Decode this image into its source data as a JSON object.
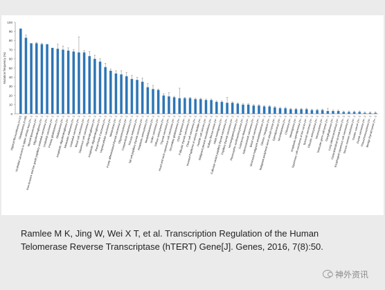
{
  "chart_data": {
    "type": "bar",
    "ylabel": "Mutation frequency (%)",
    "ylim": [
      0,
      100
    ],
    "yticks": [
      0,
      10,
      20,
      30,
      40,
      50,
      60,
      70,
      80,
      90,
      100
    ],
    "grid": false,
    "bar_color": "#2e75b6",
    "categories": [
      "Atypical fibroxanthoma (n=27)",
      "Glioblastoma (n=80)",
      "Urothelial carcinoma in upper urinary tract (n=...)",
      "Myxoid liposarcoma (n=...)",
      "Oligodendroglioma (n=...)",
      "Non-invasive and low grade papillary urothelial carcinoma (n=...)",
      "Urothelial carcinoma (n=...)",
      "Primary glioblastoma (n=...)",
      "Glioblastoma (n=...)",
      "Anaplastic oligodendroglioma (n=...)",
      "Metastatic melanoma (n=...)",
      "Urothelial carcinoma (n=...)",
      "Basal cell carcinoma (n=...)",
      "Squamous cell carcinoma (n=...)",
      "Oligodendrogliomas (n=...)",
      "Anaplastic oligodendroglioma (n=...)",
      "Renal Pelvic Carcinoma (n=...)",
      "Hepatocellular carcinoma (n=...)",
      "Melanomas (n=...)",
      "Poorly differentiated thyroid carcinoma (n=...)",
      "Oligoastrocytoma (n=...)",
      "Conjunctival melanoma (n=...)",
      "Primary melanoma (n=...)",
      "Tall cell papillary thyroid carcinoma (n=...)",
      "Anaplastic astrocytoma (n=...)",
      "Medulloblastoma (n=...)",
      "Under carcinoma (n=...)",
      "Diffuse astrocytoma (n=...)",
      "Thyroid carcinoma (n=...)",
      "Head and neck squamous cell carcinoma (n=...)",
      "Secondary glioblastoma (n=...)",
      "CNS lymphoma (n=...)",
      "Follicular thyroid carcinoma (n=...)",
      "Clear cell carcinoma (n=...)",
      "Inverted Papilloma of urinary bladder (n=...)",
      "Hurthle cell cancers (n=...)",
      "Malignant pleural mesothelioma (n=...)",
      "Solitary fibrous tumor (n=...)",
      "Adult meningioma (n=...)",
      "Follicular variant papillary thyroid carcinoma (n=...)",
      "Papillary thyroid carcinoma (n=...)",
      "Hemangiopericytoma (n=...)",
      "Pleomorphic xanthoastrocytoma (n=...)",
      "Cutaneous Melanoma (n=...)",
      "Adenocarcinoid carcinoma (n=...)",
      "Basal cell carcinoma (n=...)",
      "Sinonasal malignant ameloblastomas (n=...)",
      "Glioma / Neoplasm (n=...)",
      "Malignant peripheral nerve sheath tumor (n=...)",
      "Ependymomas (n=...)",
      "Neuroblastoma (n=...)",
      "Chloroma (n=...)",
      "Meningioma (n=...)",
      "Anaplastic ependymoma (n=...)",
      "Squamous cell carcinoma of the cervix (n=...)",
      "Synovial sarcomas (n=...)",
      "Pilocytic astrocytoma (n=...)",
      "Neurocytoma (n=...)",
      "Testicular germ cell tumor (n=...)",
      "Gangliogliomas (n=...)",
      "Lung adenocarcinomas (n=...)",
      "Gastrointestinal stromal tumors (n=...)",
      "Esophageal squamous cell carcinoma (n=...)",
      "Serous ovarian carcinoma (n=...)",
      "Gastric cancer (n=...)",
      "Ductal carcinoma (n=...)",
      "Pheochromocytoma (n=...)",
      "Benign thyroid tumor (n=...)"
    ],
    "values": [
      93,
      83,
      77,
      77,
      76,
      76,
      72,
      71,
      70,
      69,
      68,
      67,
      67,
      63,
      60,
      57,
      51,
      47,
      44,
      43,
      41,
      38,
      37,
      35,
      29,
      27,
      26,
      20,
      19,
      18,
      17,
      17,
      17,
      16,
      16,
      15,
      15,
      13,
      13,
      12,
      12,
      11,
      10,
      10,
      9,
      9,
      8,
      8,
      7,
      6,
      6,
      5,
      5,
      5,
      5,
      4,
      4,
      4,
      3,
      3,
      3,
      2,
      2,
      2,
      2,
      1,
      1,
      1
    ],
    "errors": [
      0,
      3,
      0,
      1,
      1,
      0,
      0,
      5,
      4,
      3,
      2,
      17,
      2,
      5,
      4,
      3,
      4,
      2,
      3,
      4,
      4,
      4,
      3,
      4,
      4,
      4,
      1,
      2,
      4,
      1,
      11,
      1,
      1,
      1,
      1,
      1,
      1,
      1,
      1,
      6,
      1,
      1,
      1,
      1,
      1,
      1,
      1,
      1,
      1,
      1,
      1,
      1,
      1,
      1,
      1,
      1,
      1,
      1,
      3,
      1,
      1,
      1,
      1,
      1,
      1,
      1,
      1,
      1
    ]
  },
  "citation": "Ramlee M K, Jing W, Wei X T, et al. Transcription Regulation of the Human Telomerase Reverse Transcriptase (hTERT) Gene[J]. Genes, 2016, 7(8):50.",
  "watermark": "神外资讯"
}
